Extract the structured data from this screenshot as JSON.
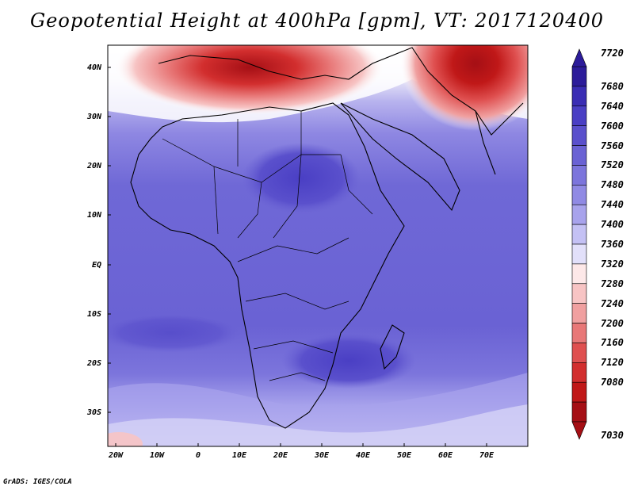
{
  "title": "Geopotential Height at 400hPa [gpm], VT: 2017120400",
  "credit": "GrADS: IGES/COLA",
  "lat_labels": [
    "40N",
    "30N",
    "20N",
    "10N",
    "EQ",
    "10S",
    "20S",
    "30S"
  ],
  "lon_labels": [
    "20W",
    "10W",
    "0",
    "10E",
    "20E",
    "30E",
    "40E",
    "50E",
    "60E",
    "70E"
  ],
  "colorbar": {
    "levels": [
      "7720",
      "7680",
      "7640",
      "7600",
      "7560",
      "7520",
      "7480",
      "7440",
      "7400",
      "7360",
      "7320",
      "7280",
      "7240",
      "7200",
      "7160",
      "7120",
      "7080",
      "7030"
    ],
    "colors": [
      "#2c1c9a",
      "#3a2db4",
      "#4a3fc4",
      "#5a50cc",
      "#6a62d4",
      "#7c75dc",
      "#908ae4",
      "#a8a3ec",
      "#c4c1f4",
      "#e2e0fa",
      "#fde8e8",
      "#f7c4c4",
      "#f0a0a0",
      "#e87878",
      "#df5050",
      "#d22e2e",
      "#c01818",
      "#a50f15"
    ]
  }
}
